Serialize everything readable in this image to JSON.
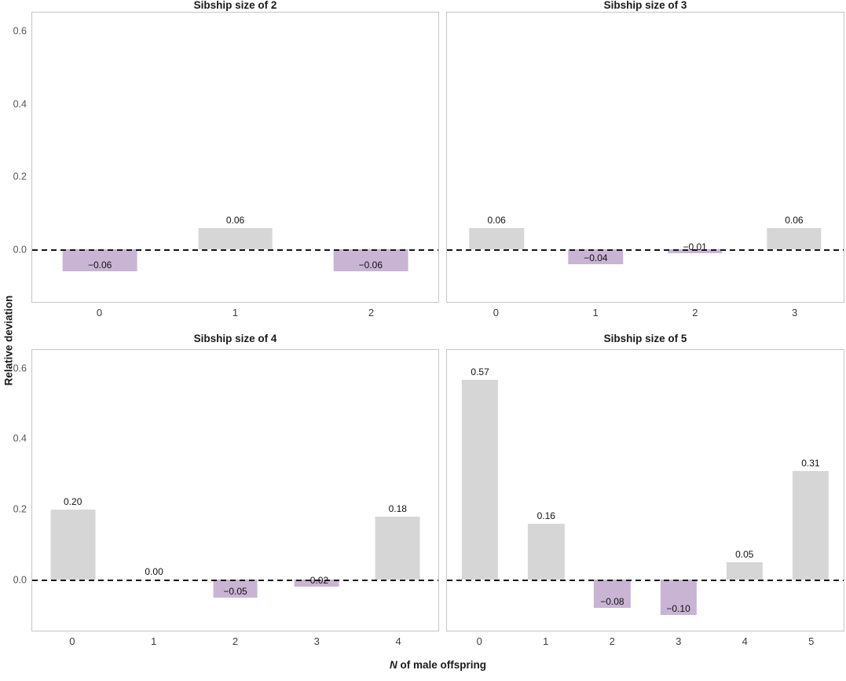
{
  "figure": {
    "ylabel": "Relative deviation",
    "xlabel_italic": "N",
    "xlabel_rest": " of male offspring"
  },
  "chart_data": {
    "type": "bar",
    "layout": "2x2 small multiples, shared axes",
    "title": "",
    "xlabel": "N of male offspring",
    "ylabel": "Relative deviation",
    "ylim": [
      -0.145,
      0.655
    ],
    "yticks": [
      0.6,
      0.4,
      0.2,
      0.0
    ],
    "ytick_labels": [
      "0.6",
      "0.4",
      "0.2",
      "0.0"
    ],
    "grid": "off",
    "zero_line": {
      "y": 0,
      "style": "dashed",
      "color": "#151515"
    },
    "colors": {
      "positive_bar": "#d6d6d6",
      "negative_bar": "#c9b4d4"
    },
    "panels": [
      {
        "title": "Sibship size of 2",
        "categories": [
          "0",
          "1",
          "2"
        ],
        "values": [
          -0.06,
          0.06,
          -0.06
        ],
        "labels": [
          "−0.06",
          "0.06",
          "−0.06"
        ]
      },
      {
        "title": "Sibship size of 3",
        "categories": [
          "0",
          "1",
          "2",
          "3"
        ],
        "values": [
          0.06,
          -0.04,
          -0.01,
          0.06
        ],
        "labels": [
          "0.06",
          "−0.04",
          "−0.01",
          "0.06"
        ]
      },
      {
        "title": "Sibship size of 4",
        "categories": [
          "0",
          "1",
          "2",
          "3",
          "4"
        ],
        "values": [
          0.2,
          0.0,
          -0.05,
          -0.02,
          0.18
        ],
        "labels": [
          "0.20",
          "0.00",
          "−0.05",
          "−0.02",
          "0.18"
        ]
      },
      {
        "title": "Sibship size of 5",
        "categories": [
          "0",
          "1",
          "2",
          "3",
          "4",
          "5"
        ],
        "values": [
          0.57,
          0.16,
          -0.08,
          -0.1,
          0.05,
          0.31
        ],
        "labels": [
          "0.57",
          "0.16",
          "−0.08",
          "−0.10",
          "0.05",
          "0.31"
        ]
      }
    ]
  }
}
